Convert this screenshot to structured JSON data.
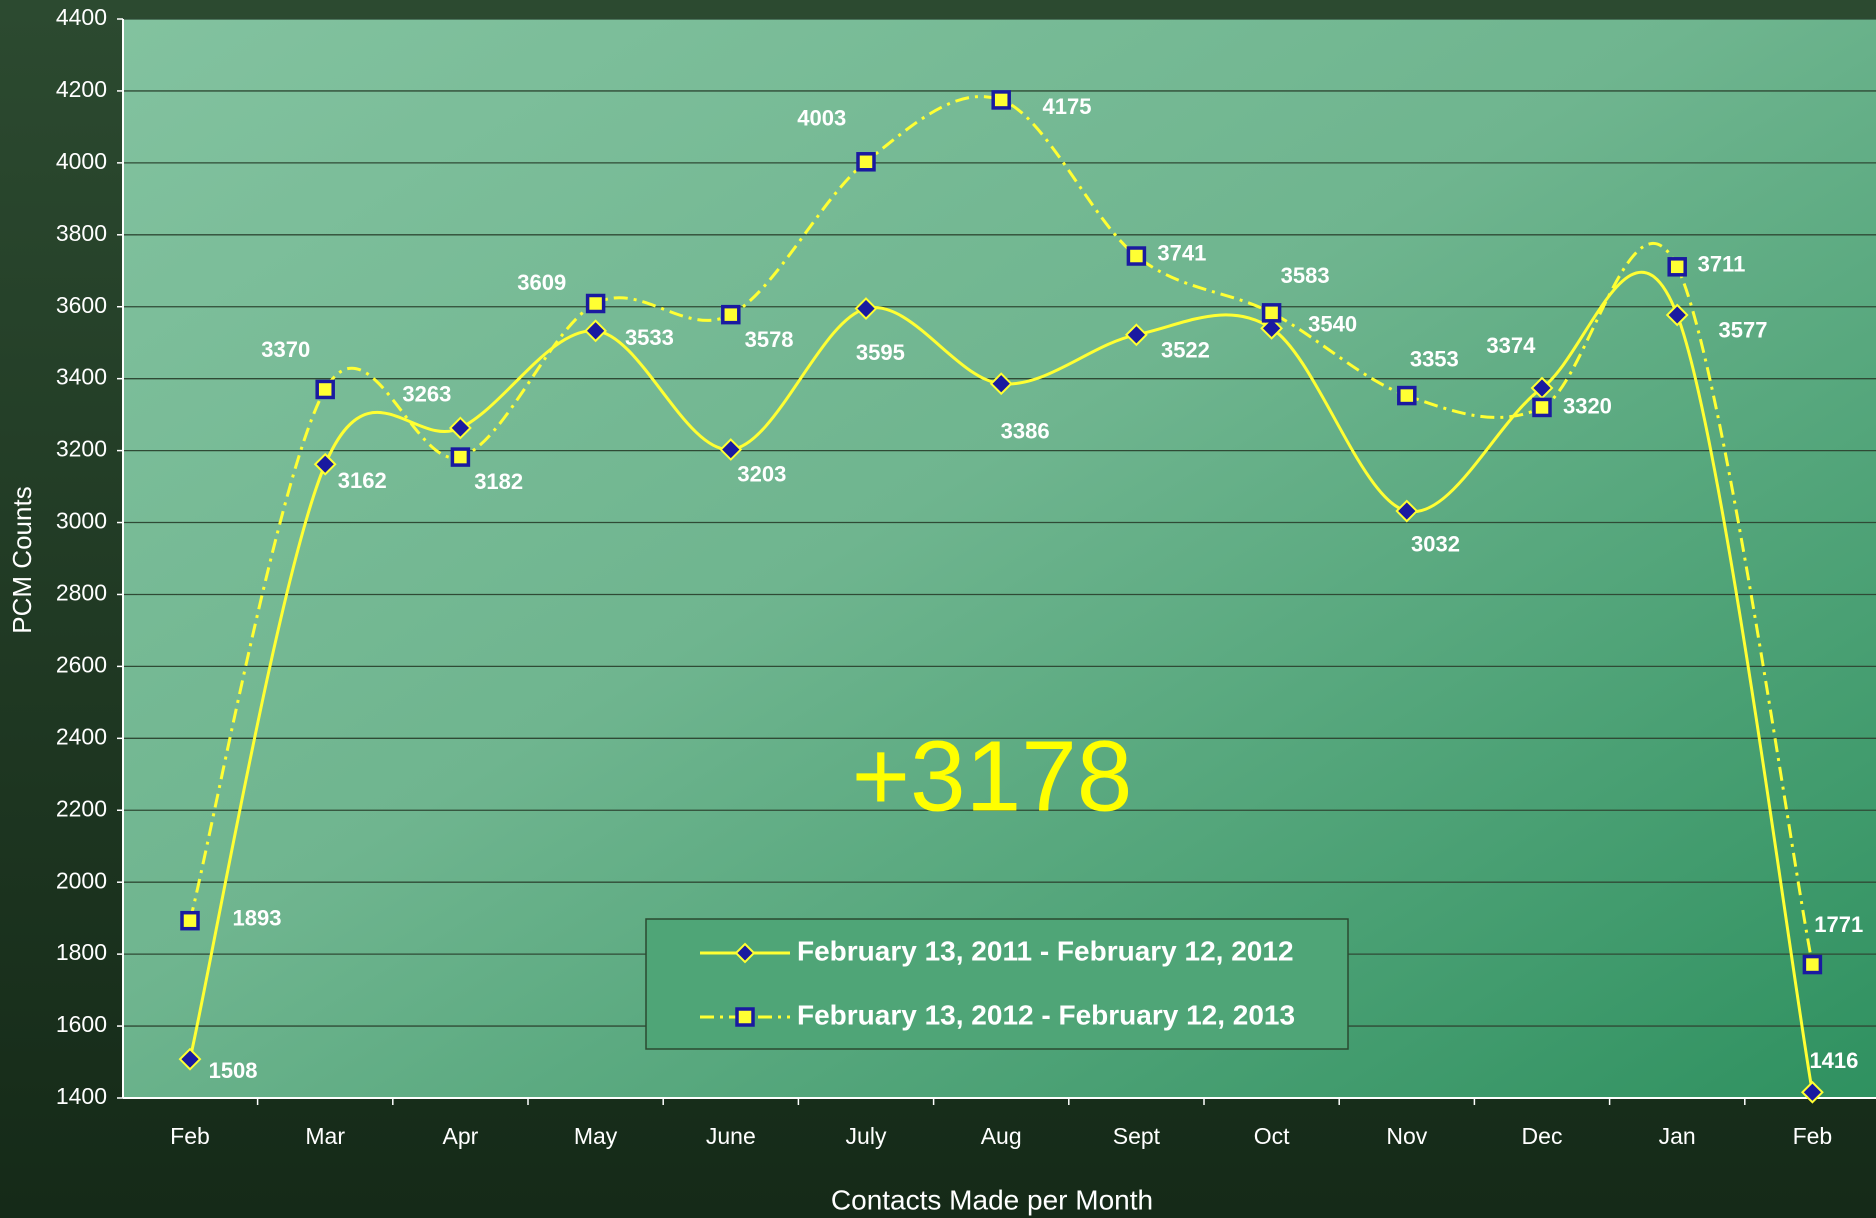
{
  "chart_data": {
    "type": "line",
    "annotation": "+3178",
    "x_label": "Contacts Made per Month",
    "y_label": "PCM Counts",
    "categories": [
      "Feb",
      "Mar",
      "Apr",
      "May",
      "June",
      "July",
      "Aug",
      "Sept",
      "Oct",
      "Nov",
      "Dec",
      "Jan",
      "Feb"
    ],
    "series": [
      {
        "name": "February 13, 2011 - February 12, 2012",
        "color": "#ffff33",
        "marker_color": "#1a1aa0",
        "style": "solid",
        "values": [
          1508,
          3162,
          3263,
          3533,
          3203,
          3595,
          3386,
          3522,
          3540,
          3032,
          3374,
          3577,
          1416
        ]
      },
      {
        "name": "February 13, 2012 - February 12, 2013",
        "color": "#ffff33",
        "marker_color": "#1a1aa0",
        "style": "dashdot",
        "values": [
          1893,
          3370,
          3182,
          3609,
          3578,
          4003,
          4175,
          3741,
          3583,
          3353,
          3320,
          3711,
          1771
        ]
      }
    ],
    "ylim": [
      1400,
      4400
    ],
    "yticks": [
      1400,
      1600,
      1800,
      2000,
      2200,
      2400,
      2600,
      2800,
      3000,
      3200,
      3400,
      3600,
      3800,
      4000,
      4200,
      4400
    ],
    "grid": true
  }
}
